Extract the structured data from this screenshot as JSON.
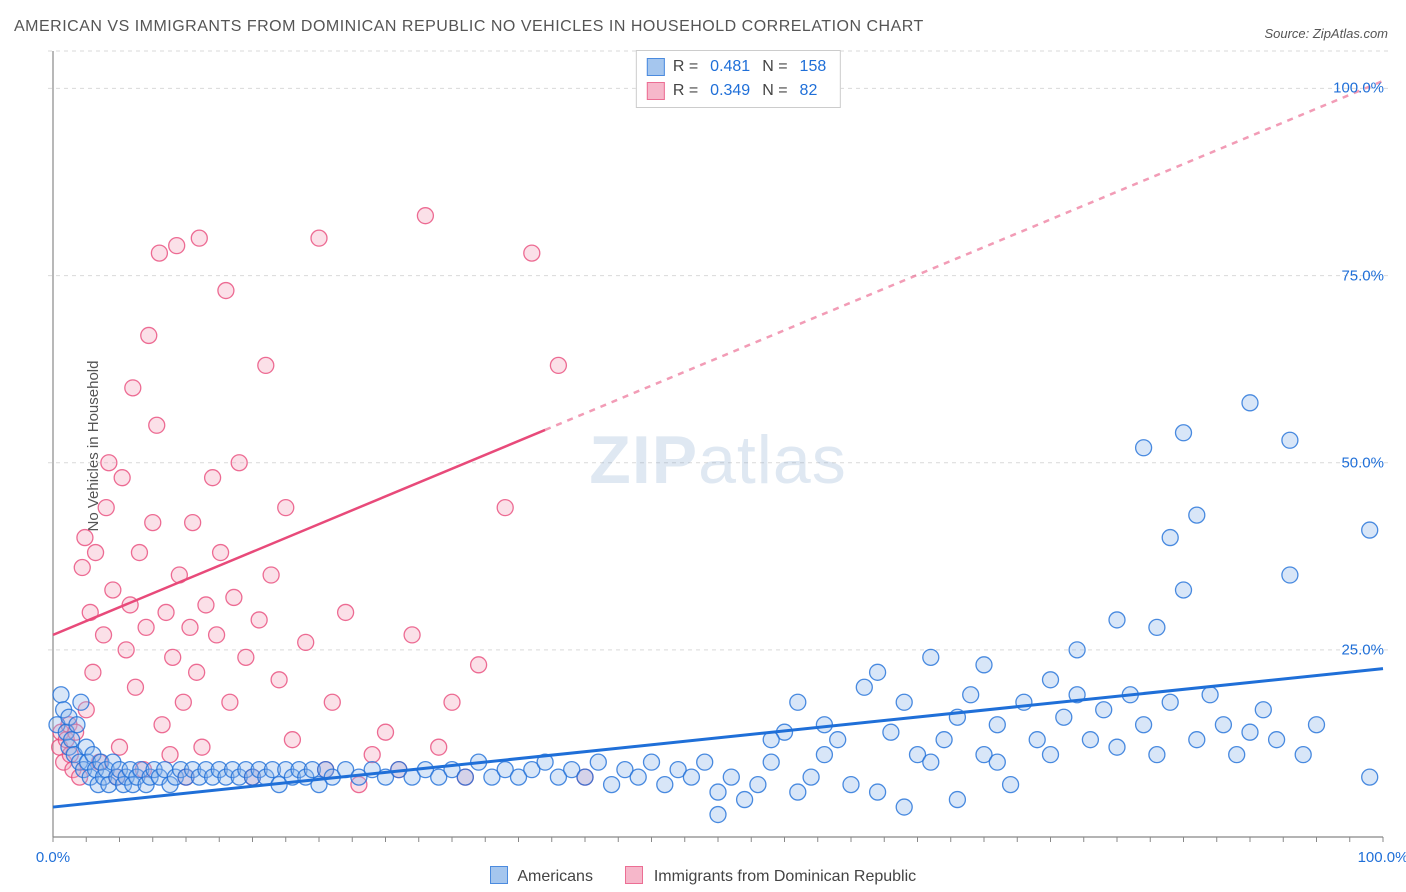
{
  "title": "AMERICAN VS IMMIGRANTS FROM DOMINICAN REPUBLIC NO VEHICLES IN HOUSEHOLD CORRELATION CHART",
  "source": "Source: ZipAtlas.com",
  "ylabel": "No Vehicles in Household",
  "watermark_a": "ZIP",
  "watermark_b": "atlas",
  "chart": {
    "type": "scatter",
    "xlim": [
      0,
      100
    ],
    "ylim": [
      0,
      105
    ],
    "x_ticks": [
      {
        "v": 0,
        "label": "0.0%"
      },
      {
        "v": 100,
        "label": "100.0%"
      }
    ],
    "y_ticks": [
      {
        "v": 25,
        "label": "25.0%"
      },
      {
        "v": 50,
        "label": "50.0%"
      },
      {
        "v": 75,
        "label": "75.0%"
      },
      {
        "v": 100,
        "label": "100.0%"
      }
    ],
    "grid_color": "#d9d9d9",
    "grid_dash": "4,4",
    "axis_color": "#888888",
    "background": "#ffffff",
    "marker_radius": 8,
    "marker_fill_opacity": 0.35,
    "series": [
      {
        "key": "americans",
        "label": "Americans",
        "color_stroke": "#1f6fd8",
        "color_fill": "#8fb8ea",
        "R": "0.481",
        "N": "158",
        "trend": {
          "x1": 0,
          "y1": 4,
          "x2": 100,
          "y2": 22.5,
          "dash_from_x": null,
          "width": 3
        },
        "points": [
          [
            0.3,
            15
          ],
          [
            0.6,
            19
          ],
          [
            0.8,
            17
          ],
          [
            1,
            14
          ],
          [
            1.2,
            16
          ],
          [
            1.2,
            12
          ],
          [
            1.4,
            13
          ],
          [
            1.6,
            11
          ],
          [
            1.8,
            15
          ],
          [
            2,
            10
          ],
          [
            2.1,
            18
          ],
          [
            2.3,
            9
          ],
          [
            2.5,
            12
          ],
          [
            2.6,
            10
          ],
          [
            2.8,
            8
          ],
          [
            3,
            11
          ],
          [
            3.2,
            9
          ],
          [
            3.4,
            7
          ],
          [
            3.6,
            10
          ],
          [
            3.8,
            8
          ],
          [
            4,
            9
          ],
          [
            4.2,
            7
          ],
          [
            4.5,
            10
          ],
          [
            4.8,
            8
          ],
          [
            5,
            9
          ],
          [
            5.3,
            7
          ],
          [
            5.5,
            8
          ],
          [
            5.8,
            9
          ],
          [
            6,
            7
          ],
          [
            6.3,
            8
          ],
          [
            6.6,
            9
          ],
          [
            7,
            7
          ],
          [
            7.3,
            8
          ],
          [
            7.6,
            9
          ],
          [
            8,
            8
          ],
          [
            8.4,
            9
          ],
          [
            8.8,
            7
          ],
          [
            9.2,
            8
          ],
          [
            9.6,
            9
          ],
          [
            10,
            8
          ],
          [
            10.5,
            9
          ],
          [
            11,
            8
          ],
          [
            11.5,
            9
          ],
          [
            12,
            8
          ],
          [
            12.5,
            9
          ],
          [
            13,
            8
          ],
          [
            13.5,
            9
          ],
          [
            14,
            8
          ],
          [
            14.5,
            9
          ],
          [
            15,
            8
          ],
          [
            15.5,
            9
          ],
          [
            16,
            8
          ],
          [
            16.5,
            9
          ],
          [
            17,
            7
          ],
          [
            17.5,
            9
          ],
          [
            18,
            8
          ],
          [
            18.5,
            9
          ],
          [
            19,
            8
          ],
          [
            19.5,
            9
          ],
          [
            20,
            7
          ],
          [
            20.5,
            9
          ],
          [
            21,
            8
          ],
          [
            22,
            9
          ],
          [
            23,
            8
          ],
          [
            24,
            9
          ],
          [
            25,
            8
          ],
          [
            26,
            9
          ],
          [
            27,
            8
          ],
          [
            28,
            9
          ],
          [
            29,
            8
          ],
          [
            30,
            9
          ],
          [
            31,
            8
          ],
          [
            32,
            10
          ],
          [
            33,
            8
          ],
          [
            34,
            9
          ],
          [
            35,
            8
          ],
          [
            36,
            9
          ],
          [
            37,
            10
          ],
          [
            38,
            8
          ],
          [
            39,
            9
          ],
          [
            40,
            8
          ],
          [
            41,
            10
          ],
          [
            42,
            7
          ],
          [
            43,
            9
          ],
          [
            44,
            8
          ],
          [
            45,
            10
          ],
          [
            46,
            7
          ],
          [
            47,
            9
          ],
          [
            48,
            8
          ],
          [
            49,
            10
          ],
          [
            50,
            3
          ],
          [
            50,
            6
          ],
          [
            51,
            8
          ],
          [
            52,
            5
          ],
          [
            53,
            7
          ],
          [
            54,
            10
          ],
          [
            55,
            14
          ],
          [
            54,
            13
          ],
          [
            56,
            18
          ],
          [
            56,
            6
          ],
          [
            57,
            8
          ],
          [
            58,
            11
          ],
          [
            58,
            15
          ],
          [
            59,
            13
          ],
          [
            60,
            7
          ],
          [
            61,
            20
          ],
          [
            62,
            22
          ],
          [
            62,
            6
          ],
          [
            63,
            14
          ],
          [
            64,
            18
          ],
          [
            64,
            4
          ],
          [
            65,
            11
          ],
          [
            66,
            24
          ],
          [
            67,
            13
          ],
          [
            68,
            16
          ],
          [
            68,
            5
          ],
          [
            69,
            19
          ],
          [
            70,
            11
          ],
          [
            70,
            23
          ],
          [
            71,
            15
          ],
          [
            72,
            7
          ],
          [
            73,
            18
          ],
          [
            74,
            13
          ],
          [
            75,
            11
          ],
          [
            75,
            21
          ],
          [
            76,
            16
          ],
          [
            77,
            19
          ],
          [
            78,
            13
          ],
          [
            79,
            17
          ],
          [
            80,
            12
          ],
          [
            81,
            19
          ],
          [
            82,
            52
          ],
          [
            82,
            15
          ],
          [
            83,
            11
          ],
          [
            84,
            40
          ],
          [
            84,
            18
          ],
          [
            85,
            54
          ],
          [
            86,
            13
          ],
          [
            86,
            43
          ],
          [
            87,
            19
          ],
          [
            88,
            15
          ],
          [
            89,
            11
          ],
          [
            90,
            58
          ],
          [
            90,
            14
          ],
          [
            91,
            17
          ],
          [
            92,
            13
          ],
          [
            93,
            53
          ],
          [
            93,
            35
          ],
          [
            94,
            11
          ],
          [
            95,
            15
          ],
          [
            99,
            41
          ],
          [
            99,
            8
          ],
          [
            85,
            33
          ],
          [
            83,
            28
          ],
          [
            80,
            29
          ],
          [
            77,
            25
          ],
          [
            71,
            10
          ],
          [
            66,
            10
          ]
        ]
      },
      {
        "key": "immigrants",
        "label": "Immigrants from Dominican Republic",
        "color_stroke": "#e84a7a",
        "color_fill": "#f4a6bd",
        "R": "0.349",
        "N": "82",
        "trend": {
          "x1": 0,
          "y1": 27,
          "x2": 100,
          "y2": 101,
          "dash_from_x": 37,
          "width": 2.5
        },
        "points": [
          [
            0.5,
            12
          ],
          [
            0.6,
            14
          ],
          [
            0.8,
            10
          ],
          [
            1,
            13
          ],
          [
            1.2,
            15
          ],
          [
            1.3,
            11
          ],
          [
            1.5,
            9
          ],
          [
            1.7,
            14
          ],
          [
            2,
            8
          ],
          [
            2.2,
            36
          ],
          [
            2.4,
            40
          ],
          [
            2.5,
            17
          ],
          [
            2.8,
            30
          ],
          [
            3,
            22
          ],
          [
            3.2,
            38
          ],
          [
            3.5,
            10
          ],
          [
            3.8,
            27
          ],
          [
            4,
            44
          ],
          [
            4.2,
            50
          ],
          [
            4.5,
            33
          ],
          [
            4.8,
            8
          ],
          [
            5,
            12
          ],
          [
            5.2,
            48
          ],
          [
            5.5,
            25
          ],
          [
            5.8,
            31
          ],
          [
            6,
            60
          ],
          [
            6.2,
            20
          ],
          [
            6.5,
            38
          ],
          [
            6.8,
            9
          ],
          [
            7,
            28
          ],
          [
            7.2,
            67
          ],
          [
            7.5,
            42
          ],
          [
            7.8,
            55
          ],
          [
            8,
            78
          ],
          [
            8.2,
            15
          ],
          [
            8.5,
            30
          ],
          [
            8.8,
            11
          ],
          [
            9,
            24
          ],
          [
            9.3,
            79
          ],
          [
            9.5,
            35
          ],
          [
            9.8,
            18
          ],
          [
            10,
            8
          ],
          [
            10.3,
            28
          ],
          [
            10.5,
            42
          ],
          [
            10.8,
            22
          ],
          [
            11,
            80
          ],
          [
            11.2,
            12
          ],
          [
            11.5,
            31
          ],
          [
            12,
            48
          ],
          [
            12.3,
            27
          ],
          [
            12.6,
            38
          ],
          [
            13,
            73
          ],
          [
            13.3,
            18
          ],
          [
            13.6,
            32
          ],
          [
            14,
            50
          ],
          [
            14.5,
            24
          ],
          [
            15,
            8
          ],
          [
            15.5,
            29
          ],
          [
            16,
            63
          ],
          [
            16.4,
            35
          ],
          [
            17,
            21
          ],
          [
            17.5,
            44
          ],
          [
            18,
            13
          ],
          [
            19,
            26
          ],
          [
            20,
            80
          ],
          [
            20.5,
            9
          ],
          [
            21,
            18
          ],
          [
            22,
            30
          ],
          [
            23,
            7
          ],
          [
            24,
            11
          ],
          [
            25,
            14
          ],
          [
            26,
            9
          ],
          [
            27,
            27
          ],
          [
            28,
            83
          ],
          [
            29,
            12
          ],
          [
            30,
            18
          ],
          [
            31,
            8
          ],
          [
            32,
            23
          ],
          [
            34,
            44
          ],
          [
            36,
            78
          ],
          [
            38,
            63
          ],
          [
            40,
            8
          ]
        ]
      }
    ]
  },
  "legend_bottom": [
    {
      "key": "americans",
      "label": "Americans"
    },
    {
      "key": "immigrants",
      "label": "Immigrants from Dominican Republic"
    }
  ]
}
